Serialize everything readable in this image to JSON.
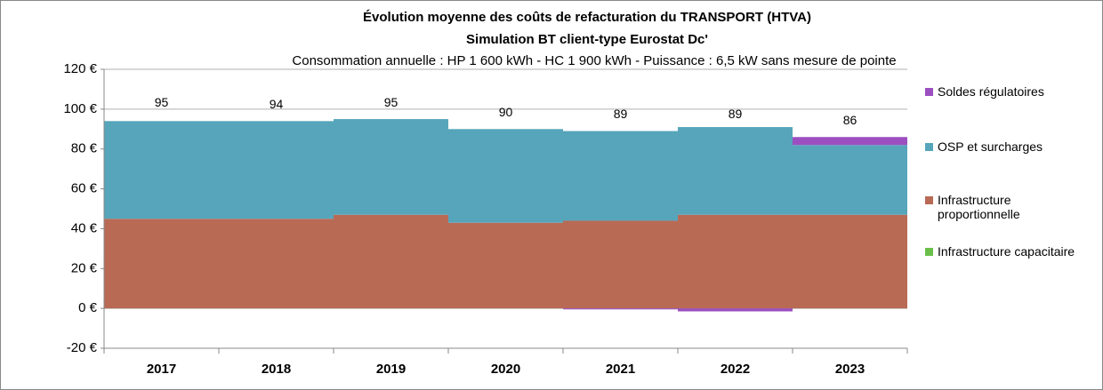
{
  "chart_data": {
    "type": "stacked-bar",
    "title": "Évolution moyenne des coûts de refacturation du TRANSPORT (HTVA)",
    "subtitle": "Simulation BT client-type Eurostat Dc'",
    "note": "Consommation annuelle : HP 1 600 kWh - HC 1 900 kWh - Puissance : 6,5 kW sans mesure de pointe",
    "categories": [
      "2017",
      "2018",
      "2019",
      "2020",
      "2021",
      "2022",
      "2023"
    ],
    "series": [
      {
        "name": "Infrastructure capacitaire",
        "color": "#6abf4b",
        "values": [
          0,
          0,
          0,
          0,
          0,
          0,
          0
        ]
      },
      {
        "name": "Infrastructure proportionnelle",
        "color": "#b86a55",
        "values": [
          45,
          45,
          47,
          43,
          44,
          47,
          47
        ]
      },
      {
        "name": "OSP et surcharges",
        "color": "#56a5bb",
        "values": [
          49,
          49,
          48,
          47,
          45,
          44,
          35
        ]
      },
      {
        "name": "Soldes régulatoires",
        "color": "#9b4fc0",
        "values": [
          0,
          0,
          0,
          0,
          -0.5,
          -1.5,
          4
        ]
      }
    ],
    "totals": [
      95,
      94,
      95,
      90,
      89,
      89,
      86
    ],
    "ylim": [
      -20,
      120
    ],
    "yticks": [
      {
        "value": -20,
        "label": "-20 €"
      },
      {
        "value": 0,
        "label": "0 €"
      },
      {
        "value": 20,
        "label": "20 €"
      },
      {
        "value": 40,
        "label": "40 €"
      },
      {
        "value": 60,
        "label": "60 €"
      },
      {
        "value": 80,
        "label": "80 €"
      },
      {
        "value": 100,
        "label": "100 €"
      },
      {
        "value": 120,
        "label": "120 €"
      }
    ],
    "grid": true
  }
}
